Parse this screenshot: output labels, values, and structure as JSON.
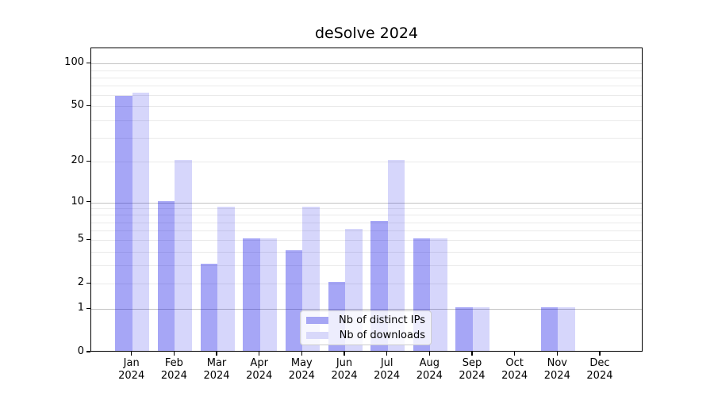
{
  "chart_data": {
    "type": "bar",
    "title": "deSolve 2024",
    "y_scale": "log1p",
    "ylim": [
      0,
      128
    ],
    "grid": "horizontal",
    "categories": [
      "Jan",
      "Feb",
      "Mar",
      "Apr",
      "May",
      "Jun",
      "Jul",
      "Aug",
      "Sep",
      "Oct",
      "Nov",
      "Dec"
    ],
    "year_label": "2024",
    "series": [
      {
        "name": "Nb of distinct IPs",
        "color": "rgba(0,0,230,0.35)",
        "swatch_color": "#a6a6f4",
        "values": [
          58,
          10,
          3,
          5,
          4,
          2,
          7,
          5,
          1,
          0,
          1,
          0
        ]
      },
      {
        "name": "Nb of downloads",
        "color": "rgba(0,0,230,0.16)",
        "swatch_color": "#d8d8fa",
        "values": [
          61,
          20,
          9,
          5,
          9,
          6,
          20,
          5,
          1,
          0,
          1,
          0
        ]
      }
    ],
    "y_ticks": [
      100,
      50,
      20,
      10,
      5,
      2,
      1,
      0
    ],
    "gridlines_major": [
      1,
      10,
      100
    ],
    "gridlines_minor": [
      2,
      3,
      4,
      5,
      6,
      7,
      8,
      9,
      20,
      30,
      40,
      50,
      60,
      70,
      80,
      90
    ],
    "legend_position": "inside-bottom-center"
  },
  "colors": {
    "grid_major": "#c3c3c3",
    "grid_minor": "#eaeaea",
    "axis": "#000000",
    "background": "#ffffff"
  }
}
